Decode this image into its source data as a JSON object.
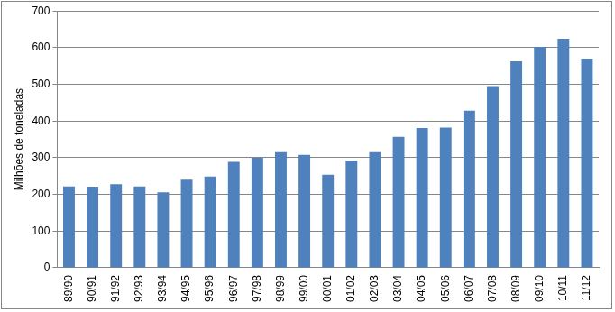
{
  "chart_data": {
    "type": "bar",
    "y_label": "Milhões de toneladas",
    "categories": [
      "89/90",
      "90/91",
      "91/92",
      "92/93",
      "93/94",
      "94/95",
      "95/96",
      "96/97",
      "97/98",
      "98/99",
      "99/00",
      "00/01",
      "01/02",
      "02/03",
      "03/04",
      "04/05",
      "05/06",
      "06/07",
      "07/08",
      "08/09",
      "09/10",
      "10/11",
      "11/12"
    ],
    "values": [
      222,
      221,
      228,
      222,
      206,
      240,
      249,
      289,
      300,
      315,
      308,
      254,
      292,
      315,
      357,
      381,
      382,
      428,
      495,
      563,
      602,
      624,
      570
    ],
    "color": "#4f81bd",
    "ylim": [
      0,
      700
    ],
    "yticks": [
      0,
      100,
      200,
      300,
      400,
      500,
      600,
      700
    ],
    "grid": true
  }
}
